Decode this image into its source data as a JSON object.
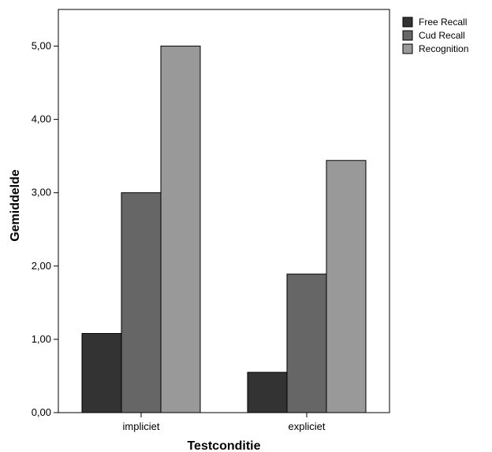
{
  "chart_data": {
    "type": "bar",
    "categories": [
      "impliciet",
      "expliciet"
    ],
    "series": [
      {
        "name": "Free Recall",
        "values": [
          1.08,
          0.55
        ],
        "color": "#333333"
      },
      {
        "name": "Cud Recall",
        "values": [
          3.0,
          1.89
        ],
        "color": "#666666"
      },
      {
        "name": "Recognition",
        "values": [
          5.0,
          3.44
        ],
        "color": "#999999"
      }
    ],
    "title": "",
    "xlabel": "Testconditie",
    "ylabel": "Gemiddelde",
    "ylim": [
      0,
      5.5
    ],
    "yticks": [
      "0,00",
      "1,00",
      "2,00",
      "3,00",
      "4,00",
      "5,00"
    ],
    "ytick_values": [
      0,
      1,
      2,
      3,
      4,
      5
    ],
    "grid": false,
    "legend_position": "top-right"
  }
}
